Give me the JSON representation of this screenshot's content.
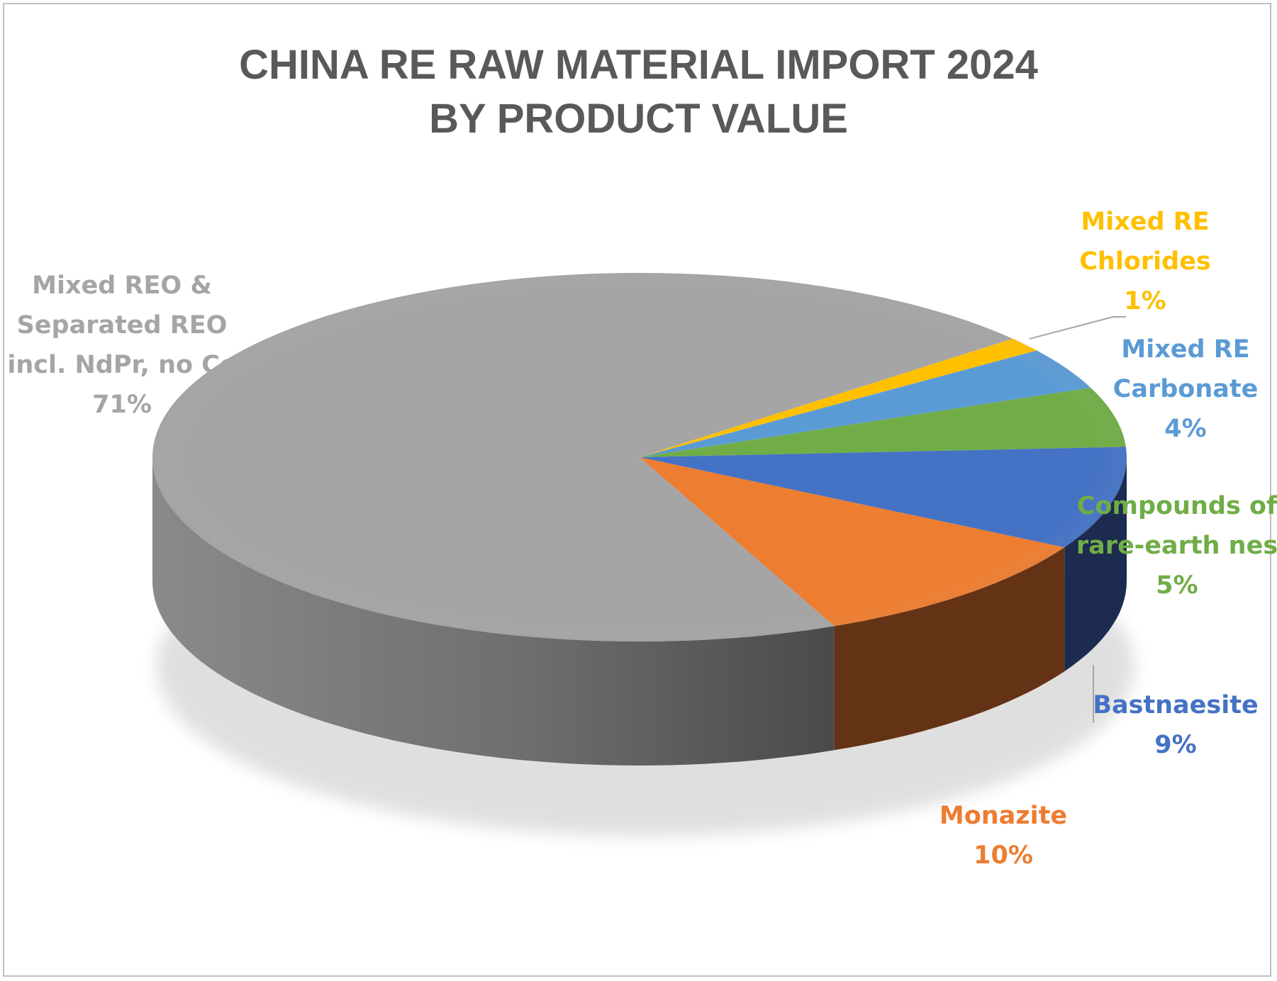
{
  "chart_data": {
    "type": "pie",
    "title_lines": [
      "CHINA RE RAW MATERIAL IMPORT 2024",
      "BY PRODUCT VALUE"
    ],
    "legend": "none",
    "slices": [
      {
        "name_lines": [
          "Mixed REO &",
          "Separated REO",
          "incl. NdPr, no Ce"
        ],
        "label": "71%",
        "value": 71,
        "color": "#a5a5a5",
        "side_color": "#6f6f6f"
      },
      {
        "name_lines": [
          "Mixed RE",
          "Chlorides"
        ],
        "label": "1%",
        "value": 1.3,
        "color": "#ffc000",
        "side_color": "#b38600"
      },
      {
        "name_lines": [
          "Mixed RE",
          "Carbonate"
        ],
        "label": "4%",
        "value": 3.7,
        "color": "#5b9bd5",
        "side_color": "#2e5f8f"
      },
      {
        "name_lines": [
          "Compounds of",
          "rare-earth nes"
        ],
        "label": "5%",
        "value": 5.3,
        "color": "#70ad47",
        "side_color": "#3f6b24"
      },
      {
        "name_lines": [
          "Bastnaesite"
        ],
        "label": "9%",
        "value": 9.1,
        "color": "#4472c4",
        "side_color": "#1c2b4f"
      },
      {
        "name_lines": [
          "Monazite"
        ],
        "label": "10%",
        "value": 10.4,
        "color": "#ed7d31",
        "side_color": "#643214"
      }
    ]
  }
}
